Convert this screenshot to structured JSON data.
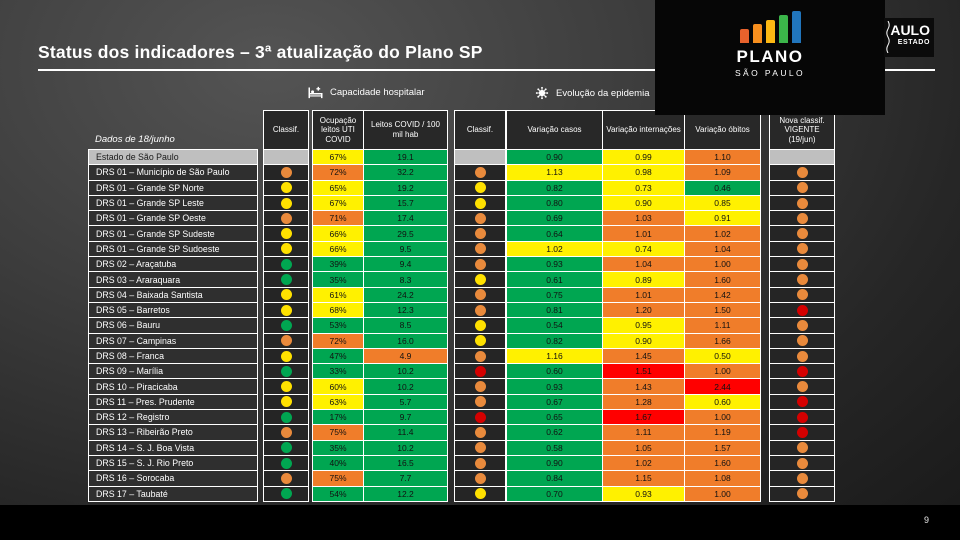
{
  "slide": {
    "title": "Status dos indicadores – 3ª atualização do Plano SP",
    "page_number": "9"
  },
  "logos": {
    "plano": {
      "line1": "PLANO",
      "line2": "SÃO PAULO",
      "bar_colors": [
        "#E8622C",
        "#F78F1E",
        "#FDB813",
        "#3BB54A",
        "#2175BC"
      ]
    },
    "governo": {
      "line1": "AULO",
      "line2": "ESTADO"
    }
  },
  "table": {
    "caption": "Dados de 18/junho",
    "groups": [
      {
        "icon": "hospital-bed-icon",
        "label": "Capacidade hospitalar"
      },
      {
        "icon": "virus-icon",
        "label": "Evolução da epidemia"
      }
    ],
    "columns": [
      "Classif.",
      "Ocupação leitos UTI COVID",
      "Leitos COVID / 100 mil hab",
      "Classif.",
      "Variação casos",
      "Variação internações",
      "Variação óbitos",
      "Nova classif. VIGENTE (19/jun)"
    ],
    "colors": {
      "cells": {
        "green": "#00A651",
        "yellow": "#FFF100",
        "orange": "#F07D2A",
        "red": "#FF0000"
      },
      "dots": {
        "green": "#00A651",
        "yellow": "#FFE100",
        "orange": "#E98A3C",
        "red": "#D40000"
      },
      "empty": "#BFBFBF"
    },
    "rows": [
      {
        "label": "Estado de São Paulo",
        "highlight": true,
        "hosp": "none",
        "ocup": [
          "67%",
          "yellow"
        ],
        "leitos": [
          "19.1",
          "green"
        ],
        "epi": "none",
        "casos": [
          "0.90",
          "green"
        ],
        "intern": [
          "0.99",
          "yellow"
        ],
        "obitos": [
          "1.10",
          "orange"
        ],
        "nova": "none"
      },
      {
        "label": "DRS 01 – Município de São Paulo",
        "hosp": "orange",
        "ocup": [
          "72%",
          "orange"
        ],
        "leitos": [
          "32.2",
          "green"
        ],
        "epi": "orange",
        "casos": [
          "1.13",
          "yellow"
        ],
        "intern": [
          "0.98",
          "yellow"
        ],
        "obitos": [
          "1.09",
          "orange"
        ],
        "nova": "orange"
      },
      {
        "label": "DRS 01 – Grande SP Norte",
        "hosp": "yellow",
        "ocup": [
          "65%",
          "yellow"
        ],
        "leitos": [
          "19.2",
          "green"
        ],
        "epi": "yellow",
        "casos": [
          "0.82",
          "green"
        ],
        "intern": [
          "0.73",
          "yellow"
        ],
        "obitos": [
          "0.46",
          "green"
        ],
        "nova": "orange"
      },
      {
        "label": "DRS 01 – Grande SP Leste",
        "hosp": "yellow",
        "ocup": [
          "67%",
          "yellow"
        ],
        "leitos": [
          "15.7",
          "green"
        ],
        "epi": "yellow",
        "casos": [
          "0.80",
          "green"
        ],
        "intern": [
          "0.90",
          "yellow"
        ],
        "obitos": [
          "0.85",
          "yellow"
        ],
        "nova": "orange"
      },
      {
        "label": "DRS 01 – Grande SP Oeste",
        "hosp": "orange",
        "ocup": [
          "71%",
          "orange"
        ],
        "leitos": [
          "17.4",
          "green"
        ],
        "epi": "orange",
        "casos": [
          "0.69",
          "green"
        ],
        "intern": [
          "1.03",
          "orange"
        ],
        "obitos": [
          "0.91",
          "yellow"
        ],
        "nova": "orange"
      },
      {
        "label": "DRS 01 – Grande SP Sudeste",
        "hosp": "yellow",
        "ocup": [
          "66%",
          "yellow"
        ],
        "leitos": [
          "29.5",
          "green"
        ],
        "epi": "orange",
        "casos": [
          "0.64",
          "green"
        ],
        "intern": [
          "1.01",
          "orange"
        ],
        "obitos": [
          "1.02",
          "orange"
        ],
        "nova": "orange"
      },
      {
        "label": "DRS 01 – Grande SP Sudoeste",
        "hosp": "yellow",
        "ocup": [
          "66%",
          "yellow"
        ],
        "leitos": [
          "9.5",
          "green"
        ],
        "epi": "orange",
        "casos": [
          "1.02",
          "yellow"
        ],
        "intern": [
          "0.74",
          "yellow"
        ],
        "obitos": [
          "1.04",
          "orange"
        ],
        "nova": "orange"
      },
      {
        "label": "DRS 02 – Araçatuba",
        "hosp": "green",
        "ocup": [
          "39%",
          "green"
        ],
        "leitos": [
          "9.4",
          "green"
        ],
        "epi": "orange",
        "casos": [
          "0.93",
          "green"
        ],
        "intern": [
          "1.04",
          "orange"
        ],
        "obitos": [
          "1.00",
          "orange"
        ],
        "nova": "orange"
      },
      {
        "label": "DRS 03 – Araraquara",
        "hosp": "green",
        "ocup": [
          "35%",
          "green"
        ],
        "leitos": [
          "8.3",
          "green"
        ],
        "epi": "yellow",
        "casos": [
          "0.61",
          "green"
        ],
        "intern": [
          "0.89",
          "yellow"
        ],
        "obitos": [
          "1.60",
          "orange"
        ],
        "nova": "orange"
      },
      {
        "label": "DRS 04 – Baixada Santista",
        "hosp": "yellow",
        "ocup": [
          "61%",
          "yellow"
        ],
        "leitos": [
          "24.2",
          "green"
        ],
        "epi": "orange",
        "casos": [
          "0.75",
          "green"
        ],
        "intern": [
          "1.01",
          "orange"
        ],
        "obitos": [
          "1.42",
          "orange"
        ],
        "nova": "orange"
      },
      {
        "label": "DRS 05 – Barretos",
        "hosp": "yellow",
        "ocup": [
          "68%",
          "yellow"
        ],
        "leitos": [
          "12.3",
          "green"
        ],
        "epi": "orange",
        "casos": [
          "0.81",
          "green"
        ],
        "intern": [
          "1.20",
          "orange"
        ],
        "obitos": [
          "1.50",
          "orange"
        ],
        "nova": "red"
      },
      {
        "label": "DRS 06 – Bauru",
        "hosp": "green",
        "ocup": [
          "53%",
          "green"
        ],
        "leitos": [
          "8.5",
          "green"
        ],
        "epi": "yellow",
        "casos": [
          "0.54",
          "green"
        ],
        "intern": [
          "0.95",
          "yellow"
        ],
        "obitos": [
          "1.11",
          "orange"
        ],
        "nova": "orange"
      },
      {
        "label": "DRS 07 – Campinas",
        "hosp": "orange",
        "ocup": [
          "72%",
          "orange"
        ],
        "leitos": [
          "16.0",
          "green"
        ],
        "epi": "yellow",
        "casos": [
          "0.82",
          "green"
        ],
        "intern": [
          "0.90",
          "yellow"
        ],
        "obitos": [
          "1.66",
          "orange"
        ],
        "nova": "orange"
      },
      {
        "label": "DRS 08 – Franca",
        "hosp": "yellow",
        "ocup": [
          "47%",
          "green"
        ],
        "leitos": [
          "4.9",
          "orange"
        ],
        "epi": "orange",
        "casos": [
          "1.16",
          "yellow"
        ],
        "intern": [
          "1.45",
          "orange"
        ],
        "obitos": [
          "0.50",
          "yellow"
        ],
        "nova": "orange"
      },
      {
        "label": "DRS 09 – Marília",
        "hosp": "green",
        "ocup": [
          "33%",
          "green"
        ],
        "leitos": [
          "10.2",
          "green"
        ],
        "epi": "red",
        "casos": [
          "0.60",
          "green"
        ],
        "intern": [
          "1.51",
          "red"
        ],
        "obitos": [
          "1.00",
          "orange"
        ],
        "nova": "red"
      },
      {
        "label": "DRS 10 – Piracicaba",
        "hosp": "yellow",
        "ocup": [
          "60%",
          "yellow"
        ],
        "leitos": [
          "10.2",
          "green"
        ],
        "epi": "orange",
        "casos": [
          "0.93",
          "green"
        ],
        "intern": [
          "1.43",
          "orange"
        ],
        "obitos": [
          "2.44",
          "red"
        ],
        "nova": "orange"
      },
      {
        "label": "DRS 11 – Pres. Prudente",
        "hosp": "yellow",
        "ocup": [
          "63%",
          "yellow"
        ],
        "leitos": [
          "5.7",
          "green"
        ],
        "epi": "orange",
        "casos": [
          "0.67",
          "green"
        ],
        "intern": [
          "1.28",
          "orange"
        ],
        "obitos": [
          "0.60",
          "yellow"
        ],
        "nova": "red"
      },
      {
        "label": "DRS 12 – Registro",
        "hosp": "green",
        "ocup": [
          "17%",
          "green"
        ],
        "leitos": [
          "9.7",
          "green"
        ],
        "epi": "red",
        "casos": [
          "0.65",
          "green"
        ],
        "intern": [
          "1.67",
          "red"
        ],
        "obitos": [
          "1.00",
          "orange"
        ],
        "nova": "red"
      },
      {
        "label": "DRS 13 – Ribeirão Preto",
        "hosp": "orange",
        "ocup": [
          "75%",
          "orange"
        ],
        "leitos": [
          "11.4",
          "green"
        ],
        "epi": "orange",
        "casos": [
          "0.62",
          "green"
        ],
        "intern": [
          "1.11",
          "orange"
        ],
        "obitos": [
          "1.19",
          "orange"
        ],
        "nova": "red"
      },
      {
        "label": "DRS 14 – S. J. Boa Vista",
        "hosp": "green",
        "ocup": [
          "35%",
          "green"
        ],
        "leitos": [
          "10.2",
          "green"
        ],
        "epi": "orange",
        "casos": [
          "0.58",
          "green"
        ],
        "intern": [
          "1.05",
          "orange"
        ],
        "obitos": [
          "1.57",
          "orange"
        ],
        "nova": "orange"
      },
      {
        "label": "DRS 15 – S. J. Rio Preto",
        "hosp": "green",
        "ocup": [
          "40%",
          "green"
        ],
        "leitos": [
          "16.5",
          "green"
        ],
        "epi": "orange",
        "casos": [
          "0.90",
          "green"
        ],
        "intern": [
          "1.02",
          "orange"
        ],
        "obitos": [
          "1.60",
          "orange"
        ],
        "nova": "orange"
      },
      {
        "label": "DRS 16 – Sorocaba",
        "hosp": "orange",
        "ocup": [
          "75%",
          "orange"
        ],
        "leitos": [
          "7.7",
          "green"
        ],
        "epi": "orange",
        "casos": [
          "0.84",
          "green"
        ],
        "intern": [
          "1.15",
          "orange"
        ],
        "obitos": [
          "1.08",
          "orange"
        ],
        "nova": "orange"
      },
      {
        "label": "DRS 17 – Taubaté",
        "hosp": "green",
        "ocup": [
          "54%",
          "green"
        ],
        "leitos": [
          "12.2",
          "green"
        ],
        "epi": "yellow",
        "casos": [
          "0.70",
          "green"
        ],
        "intern": [
          "0.93",
          "yellow"
        ],
        "obitos": [
          "1.00",
          "orange"
        ],
        "nova": "orange"
      }
    ]
  }
}
